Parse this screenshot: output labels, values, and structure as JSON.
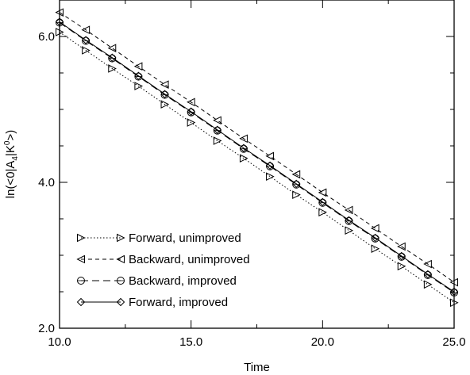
{
  "chart_data": {
    "type": "line",
    "xlabel": "Time",
    "ylabel": "ln(<0|A4|K0>)",
    "ylabel_parts": {
      "pre": "ln(<0|A",
      "sub": "4",
      "mid": "|K",
      "sup": "0",
      "post": ">)"
    },
    "xlim": [
      10,
      25
    ],
    "ylim": [
      2.0,
      6.5
    ],
    "x_ticks": [
      10,
      15,
      20,
      25
    ],
    "x_tick_labels": [
      "10.0",
      "15.0",
      "20.0",
      "25.0"
    ],
    "y_ticks": [
      2,
      4,
      6
    ],
    "y_tick_labels": [
      "2.0",
      "4.0",
      "6.0"
    ],
    "legend_position": "bottom-left",
    "series": [
      {
        "name": "Forward, unimproved",
        "marker": "triangle-right",
        "line": "dotted",
        "x": [
          10,
          11,
          12,
          13,
          14,
          15,
          16,
          17,
          18,
          19,
          20,
          21,
          22,
          23,
          24,
          25
        ],
        "y": [
          6.06,
          5.81,
          5.56,
          5.32,
          5.07,
          4.82,
          4.57,
          4.33,
          4.08,
          3.83,
          3.59,
          3.34,
          3.09,
          2.85,
          2.6,
          2.35
        ]
      },
      {
        "name": "Backward, unimproved",
        "marker": "triangle-left",
        "line": "dashed",
        "x": [
          10,
          11,
          12,
          13,
          14,
          15,
          16,
          17,
          18,
          19,
          20,
          21,
          22,
          23,
          24,
          25
        ],
        "y": [
          6.33,
          6.09,
          5.84,
          5.59,
          5.34,
          5.1,
          4.85,
          4.6,
          4.36,
          4.11,
          3.86,
          3.62,
          3.37,
          3.12,
          2.88,
          2.63
        ]
      },
      {
        "name": "Backward, improved",
        "marker": "circle",
        "line": "longdash",
        "x": [
          10,
          11,
          12,
          13,
          14,
          15,
          16,
          17,
          18,
          19,
          20,
          21,
          22,
          23,
          24,
          25
        ],
        "y": [
          6.19,
          5.94,
          5.7,
          5.45,
          5.2,
          4.96,
          4.71,
          4.46,
          4.22,
          3.97,
          3.72,
          3.47,
          3.23,
          2.98,
          2.73,
          2.49
        ]
      },
      {
        "name": "Forward, improved",
        "marker": "diamond",
        "line": "solid",
        "x": [
          10,
          11,
          12,
          13,
          14,
          15,
          16,
          17,
          18,
          19,
          20,
          21,
          22,
          23,
          24,
          25
        ],
        "y": [
          6.2,
          5.95,
          5.71,
          5.46,
          5.21,
          4.97,
          4.72,
          4.47,
          4.23,
          3.98,
          3.73,
          3.48,
          3.24,
          2.99,
          2.74,
          2.5
        ]
      }
    ]
  }
}
